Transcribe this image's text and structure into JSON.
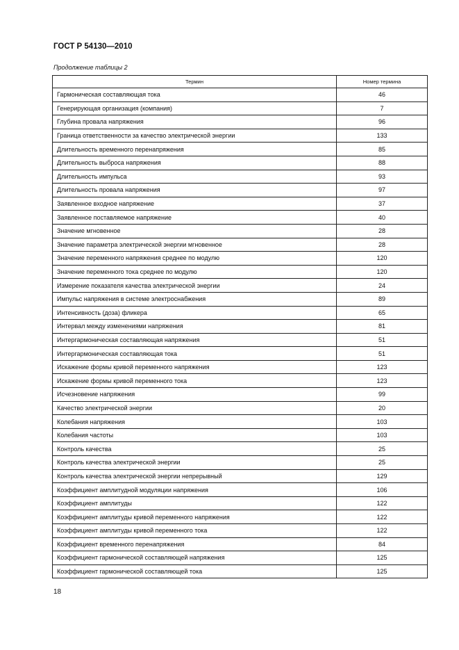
{
  "header": {
    "title": "ГОСТ Р 54130—2010"
  },
  "caption": "Продолжение таблицы 2",
  "table": {
    "columns": [
      "Термин",
      "Номер термина"
    ],
    "rows": [
      [
        "Гармоническая составляющая тока",
        "46"
      ],
      [
        "Генерирующая организация (компания)",
        "7"
      ],
      [
        "Глубина провала напряжения",
        "96"
      ],
      [
        "Граница ответственности за качество электрической энергии",
        "133"
      ],
      [
        "Длительность временного перенапряжения",
        "85"
      ],
      [
        "Длительность выброса напряжения",
        "88"
      ],
      [
        "Длительность импульса",
        "93"
      ],
      [
        "Длительность провала напряжения",
        "97"
      ],
      [
        "Заявленное входное напряжение",
        "37"
      ],
      [
        "Заявленное поставляемое напряжение",
        "40"
      ],
      [
        "Значение мгновенное",
        "28"
      ],
      [
        "Значение параметра электрической энергии мгновенное",
        "28"
      ],
      [
        "Значение переменного напряжения среднее по модулю",
        "120"
      ],
      [
        "Значение переменного тока среднее по модулю",
        "120"
      ],
      [
        "Измерение показателя качества электрической энергии",
        "24"
      ],
      [
        "Импульс напряжения в системе электроснабжения",
        "89"
      ],
      [
        "Интенсивность (доза) фликера",
        "65"
      ],
      [
        "Интервал между изменениями напряжения",
        "81"
      ],
      [
        "Интергармоническая составляющая напряжения",
        "51"
      ],
      [
        "Интергармоническая составляющая тока",
        "51"
      ],
      [
        "Искажение формы кривой переменного напряжения",
        "123"
      ],
      [
        "Искажение формы кривой переменного тока",
        "123"
      ],
      [
        "Исчезновение напряжения",
        "99"
      ],
      [
        "Качество электрической энергии",
        "20"
      ],
      [
        "Колебания напряжения",
        "103"
      ],
      [
        "Колебания частоты",
        "103"
      ],
      [
        "Контроль качества",
        "25"
      ],
      [
        "Контроль качества электрической энергии",
        "25"
      ],
      [
        "Контроль качества электрической энергии непрерывный",
        "129"
      ],
      [
        "Коэффициент амплитудной модуляции напряжения",
        "106"
      ],
      [
        "Коэффициент амплитуды",
        "122"
      ],
      [
        "Коэффициент амплитуды кривой переменного напряжения",
        "122"
      ],
      [
        "Коэффициент амплитуды кривой переменного тока",
        "122"
      ],
      [
        "Коэффициент временного перенапряжения",
        "84"
      ],
      [
        "Коэффициент гармонической составляющей напряжения",
        "125"
      ],
      [
        "Коэффициент гармонической составляющей тока",
        "125"
      ]
    ]
  },
  "footer": {
    "page_number": "18"
  }
}
